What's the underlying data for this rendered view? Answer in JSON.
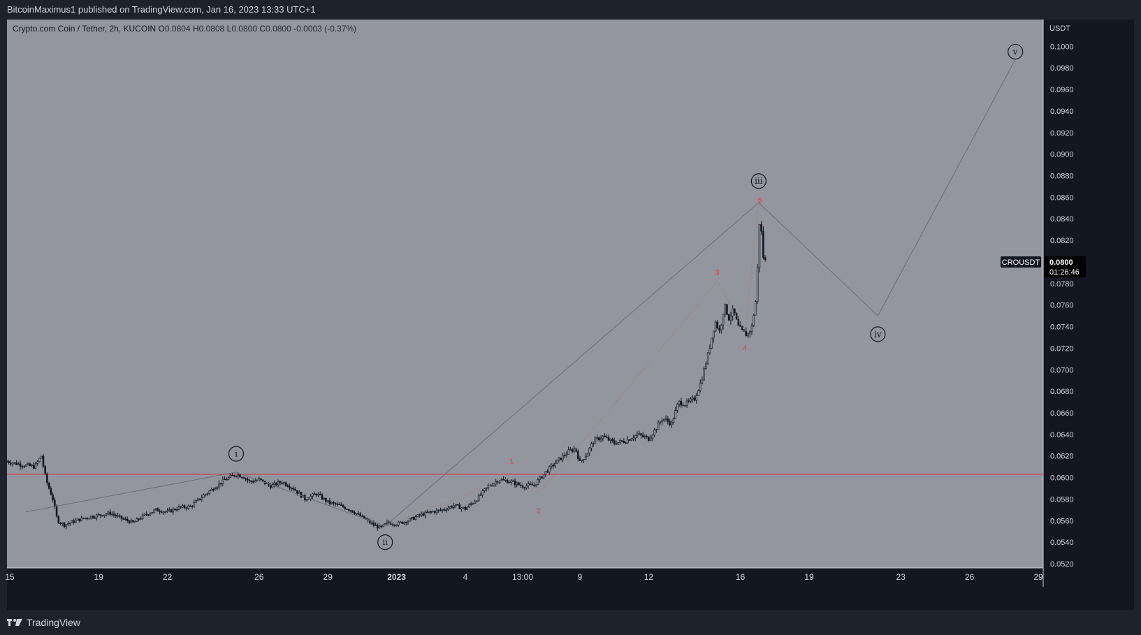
{
  "header": {
    "publisher_line": "BitcoinMaximus1 published on TradingView.com, Jan 16, 2023 13:33 UTC+1"
  },
  "legend": {
    "symbol": "Crypto.com Coin / Tether, 2h, KUCOIN",
    "o_label": "O",
    "o_value": "0.0804",
    "h_label": "H",
    "h_value": "0.0808",
    "l_label": "L",
    "l_value": "0.0800",
    "c_label": "C",
    "c_value": "0.0800",
    "change": "-0.0003 (-0.37%)"
  },
  "price_tag": {
    "symbol": "CROUSDT",
    "price": "0.0800",
    "countdown": "01:26:46"
  },
  "footer": {
    "brand": "TradingView"
  },
  "colors": {
    "plot_bg": "#93969e",
    "axis_bg": "#131722",
    "axis_text": "#d1d4dc",
    "candle": "#131722",
    "support_line": "#d32f2f",
    "wave_line": "#6a6d75",
    "subwave_label": "#e53935"
  },
  "chart_data": {
    "type": "candlestick",
    "y_axis_unit": "USDT",
    "ylim": [
      0.0515,
      0.1025
    ],
    "y_ticks": [
      "0.0520",
      "0.0540",
      "0.0560",
      "0.0580",
      "0.0600",
      "0.0620",
      "0.0640",
      "0.0660",
      "0.0680",
      "0.0700",
      "0.0720",
      "0.0740",
      "0.0760",
      "0.0780",
      "0.0800",
      "0.0820",
      "0.0840",
      "0.0860",
      "0.0880",
      "0.0900",
      "0.0920",
      "0.0940",
      "0.0960",
      "0.0980",
      "0.1000"
    ],
    "x_ticks": [
      {
        "label": "15",
        "day": 15
      },
      {
        "label": "19",
        "day": 19
      },
      {
        "label": "22",
        "day": 22
      },
      {
        "label": "26",
        "day": 26
      },
      {
        "label": "29",
        "day": 29
      },
      {
        "label": "2023",
        "day": 32
      },
      {
        "label": "4",
        "day": 35
      },
      {
        "label": "13:00",
        "day": 37.5
      },
      {
        "label": "9",
        "day": 40
      },
      {
        "label": "12",
        "day": 43
      },
      {
        "label": "16",
        "day": 47
      },
      {
        "label": "19",
        "day": 50
      },
      {
        "label": "23",
        "day": 54
      },
      {
        "label": "26",
        "day": 57
      },
      {
        "label": "29",
        "day": 60
      }
    ],
    "price_path": [
      [
        15.0,
        0.0615
      ],
      [
        15.6,
        0.0612
      ],
      [
        16.2,
        0.061
      ],
      [
        16.5,
        0.062
      ],
      [
        16.7,
        0.0598
      ],
      [
        17.0,
        0.058
      ],
      [
        17.2,
        0.056
      ],
      [
        17.5,
        0.0556
      ],
      [
        18.0,
        0.056
      ],
      [
        18.5,
        0.0563
      ],
      [
        19.0,
        0.0565
      ],
      [
        19.5,
        0.0567
      ],
      [
        20.0,
        0.0562
      ],
      [
        20.5,
        0.0558
      ],
      [
        21.0,
        0.0565
      ],
      [
        21.5,
        0.057
      ],
      [
        22.0,
        0.0568
      ],
      [
        22.5,
        0.0572
      ],
      [
        23.0,
        0.0573
      ],
      [
        23.5,
        0.0582
      ],
      [
        24.0,
        0.059
      ],
      [
        24.5,
        0.0598
      ],
      [
        25.0,
        0.0603
      ],
      [
        25.3,
        0.0601
      ],
      [
        25.6,
        0.0596
      ],
      [
        26.0,
        0.0598
      ],
      [
        26.5,
        0.0592
      ],
      [
        27.0,
        0.0596
      ],
      [
        27.5,
        0.059
      ],
      [
        28.0,
        0.058
      ],
      [
        28.5,
        0.0585
      ],
      [
        29.0,
        0.0577
      ],
      [
        29.5,
        0.0574
      ],
      [
        30.0,
        0.057
      ],
      [
        30.5,
        0.0563
      ],
      [
        31.0,
        0.0556
      ],
      [
        31.3,
        0.0553
      ],
      [
        31.6,
        0.0558
      ],
      [
        32.0,
        0.0557
      ],
      [
        32.5,
        0.056
      ],
      [
        33.0,
        0.0565
      ],
      [
        33.5,
        0.0568
      ],
      [
        34.0,
        0.057
      ],
      [
        34.5,
        0.0574
      ],
      [
        35.0,
        0.0571
      ],
      [
        35.5,
        0.058
      ],
      [
        36.0,
        0.0592
      ],
      [
        36.5,
        0.0598
      ],
      [
        37.0,
        0.0596
      ],
      [
        37.5,
        0.0592
      ],
      [
        38.0,
        0.0593
      ],
      [
        38.5,
        0.0605
      ],
      [
        39.0,
        0.0615
      ],
      [
        39.5,
        0.0624
      ],
      [
        39.8,
        0.0627
      ],
      [
        40.0,
        0.0614
      ],
      [
        40.3,
        0.0622
      ],
      [
        40.6,
        0.0634
      ],
      [
        41.0,
        0.0638
      ],
      [
        41.5,
        0.0632
      ],
      [
        42.0,
        0.0634
      ],
      [
        42.5,
        0.064
      ],
      [
        43.0,
        0.0636
      ],
      [
        43.3,
        0.0645
      ],
      [
        43.6,
        0.0655
      ],
      [
        44.0,
        0.065
      ],
      [
        44.3,
        0.067
      ],
      [
        44.6,
        0.0668
      ],
      [
        45.0,
        0.0673
      ],
      [
        45.3,
        0.069
      ],
      [
        45.6,
        0.0715
      ],
      [
        45.9,
        0.0745
      ],
      [
        46.1,
        0.0735
      ],
      [
        46.3,
        0.076
      ],
      [
        46.5,
        0.0748
      ],
      [
        46.7,
        0.0755
      ],
      [
        46.9,
        0.074
      ],
      [
        47.1,
        0.0735
      ],
      [
        47.3,
        0.0732
      ],
      [
        47.5,
        0.074
      ],
      [
        47.7,
        0.0768
      ],
      [
        47.85,
        0.0845
      ],
      [
        48.0,
        0.0805
      ],
      [
        48.1,
        0.08
      ]
    ],
    "support_level": 0.0603,
    "wave_path": [
      [
        15.8,
        0.0568
      ],
      [
        25.0,
        0.0605
      ],
      [
        31.5,
        0.0555
      ],
      [
        47.8,
        0.0855
      ],
      [
        53.0,
        0.075
      ],
      [
        59.0,
        0.0988
      ]
    ],
    "subwave_path": [
      [
        31.5,
        0.0555
      ],
      [
        37.0,
        0.06
      ],
      [
        38.2,
        0.0585
      ],
      [
        46.0,
        0.0782
      ],
      [
        47.2,
        0.0735
      ],
      [
        47.8,
        0.0855
      ]
    ],
    "wave_labels": [
      {
        "text": "i",
        "day": 25.0,
        "price": 0.0622
      },
      {
        "text": "ii",
        "day": 31.5,
        "price": 0.054
      },
      {
        "text": "iii",
        "day": 47.8,
        "price": 0.0875
      },
      {
        "text": "iv",
        "day": 53.0,
        "price": 0.0733
      },
      {
        "text": "v",
        "day": 59.0,
        "price": 0.0995
      }
    ],
    "subwave_labels": [
      {
        "text": "1",
        "day": 37.0,
        "price": 0.0613
      },
      {
        "text": "2",
        "day": 38.2,
        "price": 0.0567
      },
      {
        "text": "3",
        "day": 46.0,
        "price": 0.0788
      },
      {
        "text": "4",
        "day": 47.2,
        "price": 0.0718
      },
      {
        "text": "5",
        "day": 47.85,
        "price": 0.0855
      }
    ]
  }
}
